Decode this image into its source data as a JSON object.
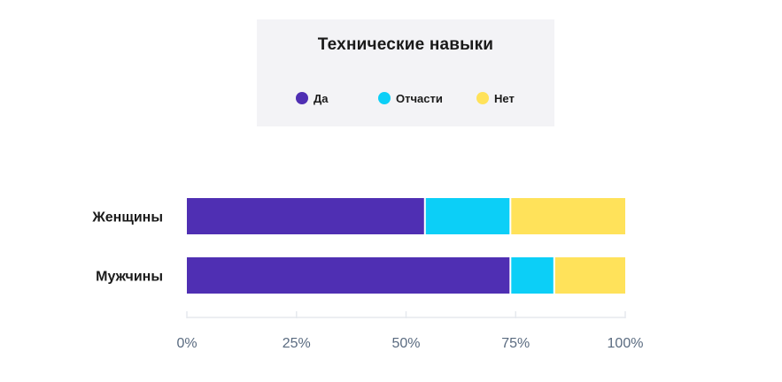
{
  "chart_data": {
    "type": "bar",
    "orientation": "horizontal",
    "stacked": true,
    "title": "Технические навыки",
    "categories": [
      "Женщины",
      "Мужчины"
    ],
    "series": [
      {
        "name": "Да",
        "color": "#4f2fb3",
        "values": [
          54.5,
          74
        ]
      },
      {
        "name": "Отчасти",
        "color": "#0ccff7",
        "values": [
          19.5,
          10
        ]
      },
      {
        "name": "Нет",
        "color": "#ffe25a",
        "values": [
          26,
          16
        ]
      }
    ],
    "xlim": [
      0,
      100
    ],
    "xticks": [
      "0%",
      "25%",
      "50%",
      "75%",
      "100%"
    ],
    "grid": false,
    "legend_position": "top"
  }
}
